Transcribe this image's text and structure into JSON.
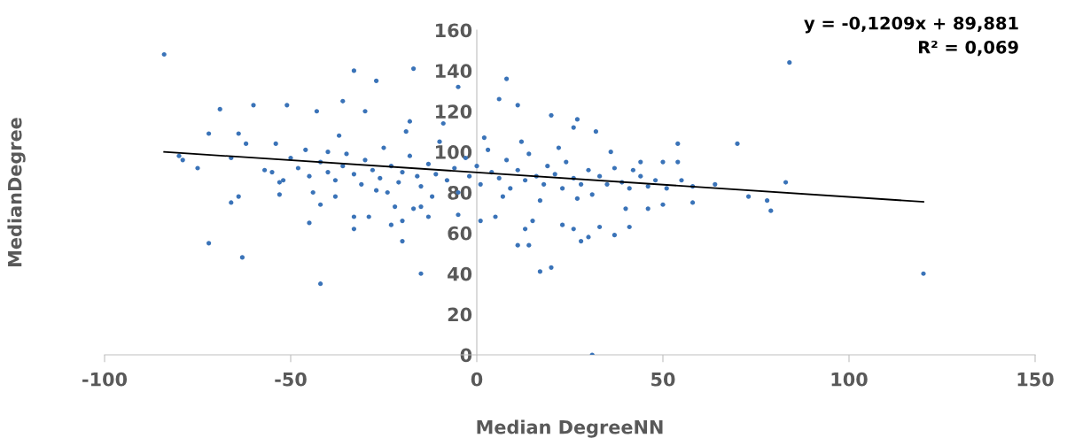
{
  "chart_data": {
    "type": "scatter",
    "xlabel": "Median DegreeNN",
    "ylabel": "MedianDegree",
    "annotations": [
      "y = -0,1209x + 89,881",
      "R² = 0,069"
    ],
    "xlim": [
      -100,
      150
    ],
    "xticks": [
      -100,
      -50,
      0,
      50,
      100,
      150
    ],
    "ylim": [
      0,
      160
    ],
    "yticks": [
      0,
      20,
      40,
      60,
      80,
      100,
      120,
      140,
      160
    ],
    "grid": false,
    "legend": false,
    "marker": "circle",
    "series": [
      {
        "color": "#3a73b8",
        "x": [
          -84,
          84,
          120,
          31,
          -42,
          -72,
          -63,
          -15,
          17,
          20,
          -33,
          -17,
          -27,
          -5,
          8,
          6,
          11,
          20,
          27,
          26,
          32,
          70,
          54,
          -69,
          -60,
          -51,
          -36,
          -43,
          -30,
          -72,
          -64,
          -18,
          -80,
          -79,
          -75,
          -66,
          -62,
          -54,
          83,
          73,
          78,
          79,
          64,
          58,
          58,
          55,
          54,
          50,
          44,
          11,
          14,
          13,
          15,
          23,
          28,
          30,
          37,
          41,
          33,
          5,
          1,
          26,
          46,
          50,
          40,
          -66,
          -64,
          -53,
          -53,
          -45,
          -42,
          -33,
          -33,
          -23,
          -20,
          -20,
          -15,
          -13,
          -5,
          -38,
          -29,
          -22,
          -17,
          -48,
          -45,
          -42,
          -40,
          -38,
          -36,
          -35,
          -33,
          -31,
          -30,
          -28,
          -26,
          -25,
          -23,
          -21,
          -20,
          -18,
          -16,
          -15,
          -13,
          -11,
          -10,
          -8,
          -6,
          -5,
          -3,
          -2,
          0,
          1,
          3,
          4,
          6,
          8,
          9,
          11,
          13,
          14,
          16,
          18,
          19,
          21,
          23,
          24,
          26,
          28,
          30,
          31,
          33,
          35,
          37,
          39,
          41,
          44,
          46,
          48,
          51,
          -55,
          -52,
          -50,
          -46,
          -44,
          -40,
          -27,
          -19,
          -9,
          2,
          12,
          22,
          36,
          42,
          -37,
          -57,
          7,
          17,
          27,
          -12,
          -24
        ],
        "values": [
          148,
          144,
          40,
          0,
          35,
          55,
          48,
          40,
          41,
          43,
          140,
          141,
          135,
          132,
          136,
          126,
          123,
          118,
          116,
          112,
          110,
          104,
          104,
          121,
          123,
          123,
          125,
          120,
          120,
          109,
          109,
          115,
          98,
          96,
          92,
          97,
          104,
          104,
          85,
          78,
          76,
          71,
          84,
          75,
          83,
          86,
          95,
          95,
          95,
          54,
          54,
          62,
          66,
          64,
          56,
          58,
          59,
          63,
          63,
          68,
          66,
          62,
          72,
          74,
          72,
          75,
          78,
          79,
          85,
          65,
          74,
          62,
          68,
          64,
          56,
          66,
          73,
          68,
          69,
          78,
          68,
          73,
          72,
          92,
          88,
          95,
          90,
          86,
          93,
          99,
          89,
          84,
          96,
          91,
          87,
          102,
          93,
          85,
          90,
          98,
          88,
          83,
          94,
          89,
          105,
          86,
          92,
          80,
          97,
          88,
          93,
          84,
          101,
          90,
          87,
          96,
          82,
          91,
          86,
          99,
          88,
          84,
          93,
          89,
          82,
          95,
          87,
          84,
          91,
          79,
          88,
          84,
          92,
          85,
          82,
          88,
          83,
          86,
          82,
          90,
          86,
          97,
          101,
          80,
          100,
          81,
          110,
          114,
          107,
          105,
          102,
          100,
          91,
          108,
          91,
          78,
          76,
          77,
          78,
          80
        ]
      },
      {
        "type": "line",
        "color": "#000000",
        "marker": "none",
        "line_style": "solid",
        "x": [
          -84,
          120
        ],
        "values": [
          100.0,
          75.4
        ]
      }
    ]
  }
}
